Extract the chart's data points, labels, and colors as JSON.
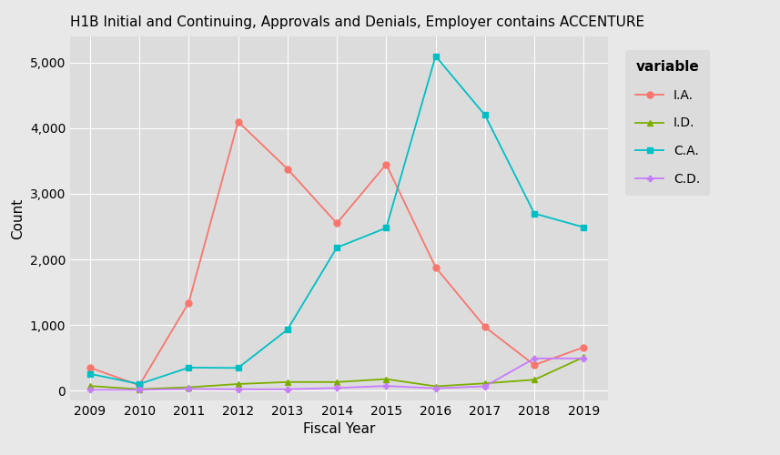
{
  "title": "H1B Initial and Continuing, Approvals and Denials, Employer contains ACCENTURE",
  "xlabel": "Fiscal Year",
  "ylabel": "Count",
  "legend_title": "variable",
  "years": [
    2009,
    2010,
    2011,
    2012,
    2013,
    2014,
    2015,
    2016,
    2017,
    2018,
    2019
  ],
  "series": {
    "I.A.": {
      "values": [
        350,
        80,
        1340,
        4100,
        3380,
        2550,
        3450,
        1880,
        970,
        390,
        660
      ],
      "color": "#F8766D",
      "marker": "o",
      "linestyle": "-"
    },
    "I.D.": {
      "values": [
        70,
        20,
        50,
        100,
        130,
        130,
        175,
        65,
        110,
        165,
        510
      ],
      "color": "#7CAE00",
      "marker": "^",
      "linestyle": "-"
    },
    "C.A.": {
      "values": [
        255,
        100,
        350,
        345,
        930,
        2180,
        2480,
        5100,
        4200,
        2700,
        2490
      ],
      "color": "#00BFC4",
      "marker": "s",
      "linestyle": "-"
    },
    "C.D.": {
      "values": [
        10,
        10,
        25,
        20,
        20,
        40,
        70,
        35,
        65,
        490,
        490
      ],
      "color": "#C77CFF",
      "marker": "P",
      "linestyle": "-"
    }
  },
  "ylim": [
    -150,
    5400
  ],
  "yticks": [
    0,
    1000,
    2000,
    3000,
    4000,
    5000
  ],
  "background_color": "#E8E8E8",
  "plot_bg_color": "#DCDCDC",
  "grid_color": "#FFFFFF",
  "legend_bg_color": "#DCDCDC",
  "title_fontsize": 11,
  "axis_label_fontsize": 11,
  "tick_fontsize": 10,
  "legend_fontsize": 10
}
